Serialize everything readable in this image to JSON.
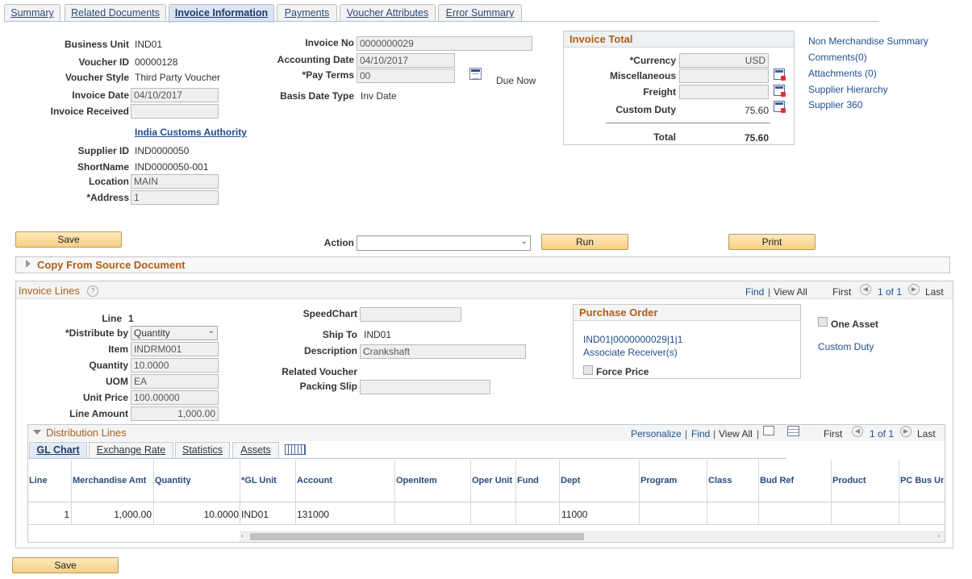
{
  "tabs": [
    "Summary",
    "Related Documents",
    "Invoice Information",
    "Payments",
    "Voucher Attributes",
    "Error Summary"
  ],
  "header": {
    "business_unit_label": "Business Unit",
    "business_unit": "IND01",
    "voucher_id_label": "Voucher ID",
    "voucher_id": "00000128",
    "voucher_style_label": "Voucher Style",
    "voucher_style": "Third Party Voucher",
    "invoice_date_label": "Invoice Date",
    "invoice_date": "04/10/2017",
    "invoice_received_label": "Invoice Received",
    "invoice_received": "",
    "supplier_link": "India Customs Authority",
    "supplier_id_label": "Supplier ID",
    "supplier_id": "IND0000050",
    "shortname_label": "ShortName",
    "shortname": "IND0000050-001",
    "location_label": "Location",
    "location": "MAIN",
    "address_label": "*Address",
    "address": "1",
    "invoice_no_label": "Invoice No",
    "invoice_no": "0000000029",
    "accounting_date_label": "Accounting Date",
    "accounting_date": "04/10/2017",
    "pay_terms_label": "*Pay Terms",
    "pay_terms": "00",
    "due_now": "Due Now",
    "basis_date_type_label": "Basis Date Type",
    "basis_date_type": "Inv Date"
  },
  "invoice_total": {
    "title": "Invoice Total",
    "currency_label": "*Currency",
    "currency": "USD",
    "misc_label": "Miscellaneous",
    "misc": "",
    "freight_label": "Freight",
    "freight": "",
    "custom_duty_label": "Custom Duty",
    "custom_duty": "75.60",
    "total_label": "Total",
    "total": "75.60"
  },
  "side_links": [
    "Non Merchandise Summary",
    "Comments(0)",
    "Attachments (0)",
    "Supplier Hierarchy",
    "Supplier 360"
  ],
  "actions": {
    "save": "Save",
    "action_label": "Action",
    "action_value": "",
    "run": "Run",
    "print": "Print"
  },
  "copy_from": "Copy From Source Document",
  "invoice_lines": {
    "title": "Invoice Lines",
    "help": "?",
    "find": "Find",
    "view_all": "View All",
    "first": "First",
    "page": "1 of 1",
    "last": "Last",
    "line_label": "Line",
    "line": "1",
    "distribute_by_label": "*Distribute by",
    "distribute_by": "Quantity",
    "item_label": "Item",
    "item": "INDRM001",
    "quantity_label": "Quantity",
    "quantity": "10.0000",
    "uom_label": "UOM",
    "uom": "EA",
    "unit_price_label": "Unit Price",
    "unit_price": "100.00000",
    "line_amount_label": "Line Amount",
    "line_amount": "1,000.00",
    "speedchart_label": "SpeedChart",
    "speedchart": "",
    "ship_to_label": "Ship To",
    "ship_to": "IND01",
    "description_label": "Description",
    "description": "Crankshaft",
    "related_voucher_label": "Related Voucher",
    "packing_slip_label": "Packing Slip",
    "packing_slip": "",
    "po_title": "Purchase Order",
    "po_link": "IND01|0000000029|1|1",
    "assoc_receiver": "Associate Receiver(s)",
    "force_price": "Force Price",
    "one_asset": "One Asset",
    "custom_duty_link": "Custom Duty"
  },
  "distribution": {
    "title": "Distribution Lines",
    "personalize": "Personalize",
    "find": "Find",
    "view_all": "View All",
    "first": "First",
    "page": "1 of 1",
    "last": "Last",
    "tabs": [
      "GL Chart",
      "Exchange Rate",
      "Statistics",
      "Assets"
    ],
    "columns": [
      "Line",
      "Merchandise Amt",
      "Quantity",
      "*GL Unit",
      "Account",
      "OpenItem",
      "Oper Unit",
      "Fund",
      "Dept",
      "Program",
      "Class",
      "Bud Ref",
      "Product",
      "PC Bus Un"
    ],
    "row": {
      "line": "1",
      "merch_amt": "1,000.00",
      "quantity": "10.0000",
      "gl_unit": "IND01",
      "account": "131000",
      "dept": "11000"
    }
  },
  "bottom_save": "Save",
  "colors": {
    "accent": "#b15e11",
    "link": "#1f4e8c",
    "button": "#f7cf84"
  }
}
